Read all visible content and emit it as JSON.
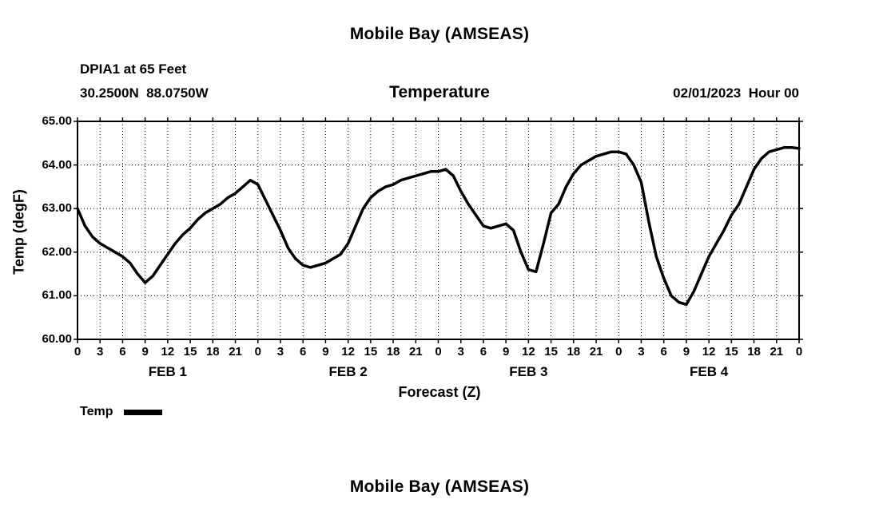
{
  "page": {
    "top_title": "Mobile Bay (AMSEAS)",
    "bottom_title": "Mobile Bay (AMSEAS)"
  },
  "header": {
    "station": "DPIA1 at 65 Feet",
    "coordinates": "30.2500N  88.0750W",
    "chart_title": "Temperature",
    "run_time": "02/01/2023  Hour 00"
  },
  "chart_data": {
    "type": "line",
    "title": "Temperature",
    "xlabel": "Forecast (Z)",
    "ylabel": "Temp (degF)",
    "xlim": [
      0,
      96
    ],
    "ylim": [
      60,
      65
    ],
    "x_tick_step_hours": 3,
    "x_tick_label_cycle": [
      "0",
      "3",
      "6",
      "9",
      "12",
      "15",
      "18",
      "21"
    ],
    "y_tick_labels_top_to_bottom": [
      "65.00",
      "64.00",
      "63.00",
      "62.00",
      "61.00",
      "60.00"
    ],
    "day_labels": [
      "FEB 1",
      "FEB 2",
      "FEB 3",
      "FEB 4"
    ],
    "grid": "dotted",
    "line_color": "#000000",
    "legend": [
      {
        "name": "Temp",
        "color": "#000000"
      }
    ],
    "series": [
      {
        "name": "Temp",
        "x_start_hour": 0,
        "x_step_hours": 1,
        "y": [
          63.0,
          62.6,
          62.35,
          62.2,
          62.1,
          62.0,
          61.9,
          61.75,
          61.5,
          61.3,
          61.45,
          61.7,
          61.95,
          62.2,
          62.4,
          62.55,
          62.75,
          62.9,
          63.0,
          63.1,
          63.25,
          63.35,
          63.5,
          63.65,
          63.55,
          63.2,
          62.85,
          62.5,
          62.1,
          61.85,
          61.7,
          61.65,
          61.7,
          61.75,
          61.85,
          61.95,
          62.2,
          62.6,
          63.0,
          63.25,
          63.4,
          63.5,
          63.55,
          63.65,
          63.7,
          63.75,
          63.8,
          63.85,
          63.85,
          63.9,
          63.75,
          63.4,
          63.1,
          62.85,
          62.6,
          62.55,
          62.6,
          62.65,
          62.5,
          62.0,
          61.6,
          61.55,
          62.2,
          62.9,
          63.1,
          63.5,
          63.8,
          64.0,
          64.1,
          64.2,
          64.25,
          64.3,
          64.3,
          64.25,
          64.0,
          63.6,
          62.7,
          61.9,
          61.4,
          61.0,
          60.85,
          60.8,
          61.1,
          61.5,
          61.9,
          62.2,
          62.5,
          62.85,
          63.1,
          63.5,
          63.9,
          64.15,
          64.3,
          64.35,
          64.4,
          64.4,
          64.38
        ]
      }
    ]
  }
}
